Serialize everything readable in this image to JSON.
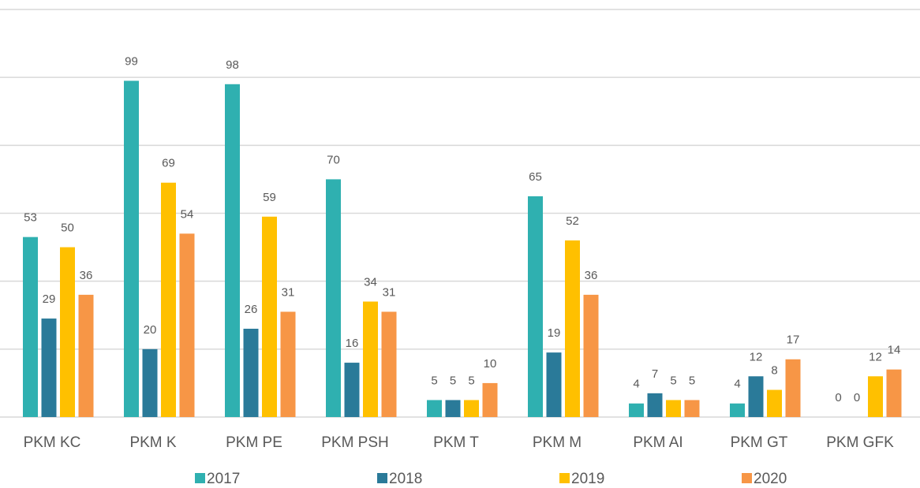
{
  "chart_data": {
    "type": "bar",
    "categories": [
      "PKM KC",
      "PKM K",
      "PKM PE",
      "PKM PSH",
      "PKM T",
      "PKM M",
      "PKM AI",
      "PKM GT",
      "PKM GFK"
    ],
    "series": [
      {
        "name": "2017",
        "color": "#2fb0b0",
        "values": [
          53,
          99,
          98,
          70,
          5,
          65,
          4,
          4,
          0
        ]
      },
      {
        "name": "2018",
        "color": "#2a7a99",
        "values": [
          29,
          20,
          26,
          16,
          5,
          19,
          7,
          12,
          0
        ]
      },
      {
        "name": "2019",
        "color": "#ffc000",
        "values": [
          50,
          69,
          59,
          34,
          5,
          52,
          5,
          8,
          12
        ]
      },
      {
        "name": "2020",
        "color": "#f79646",
        "values": [
          36,
          54,
          31,
          31,
          10,
          36,
          5,
          17,
          14
        ]
      }
    ],
    "ylim": [
      0,
      120
    ],
    "yticks": [
      0,
      20,
      40,
      60,
      80,
      100,
      120
    ],
    "grid": true,
    "legend": "bottom"
  }
}
